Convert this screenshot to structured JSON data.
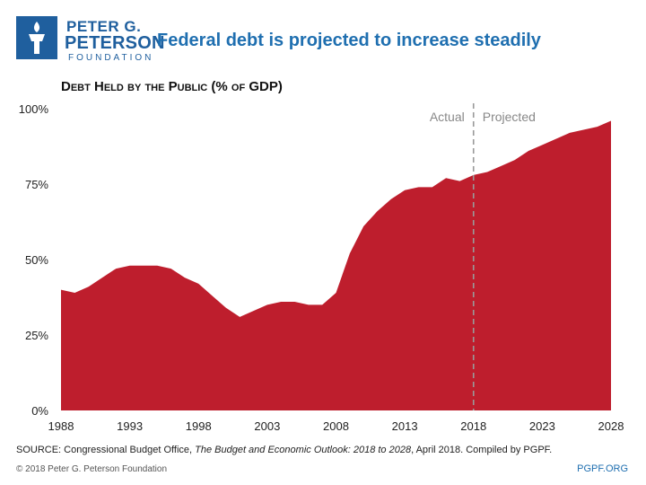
{
  "brand": {
    "line1": "PETER G.",
    "line2": "PETERSON",
    "line3": "FOUNDATION",
    "color": "#1f5f9e"
  },
  "headline": "Federal debt is projected to increase steadily",
  "footer": {
    "source_prefix": "SOURCE: Congressional Budget Office, ",
    "source_title": "The Budget and Economic Outlook: 2018 to 2028",
    "source_suffix": ", April 2018. Compiled by PGPF.",
    "copyright": "© 2018 Peter G. Peterson Foundation",
    "site": "PGPF.ORG"
  },
  "chart_data": {
    "type": "area",
    "title": "Debt Held by the Public (% of GDP)",
    "xlabel": "",
    "ylabel": "",
    "x_ticks": [
      "1988",
      "1993",
      "1998",
      "2003",
      "2008",
      "2013",
      "2018",
      "2023",
      "2028"
    ],
    "y_ticks": [
      "0%",
      "25%",
      "50%",
      "75%",
      "100%"
    ],
    "ylim": [
      0,
      100
    ],
    "xlim": [
      1988,
      2028
    ],
    "divider_year": 2018,
    "annotations": {
      "left": "Actual",
      "right": "Projected"
    },
    "fill_color": "#be1e2d",
    "series": [
      {
        "name": "Debt Held by the Public (% of GDP)",
        "x": [
          1988,
          1989,
          1990,
          1991,
          1992,
          1993,
          1994,
          1995,
          1996,
          1997,
          1998,
          1999,
          2000,
          2001,
          2002,
          2003,
          2004,
          2005,
          2006,
          2007,
          2008,
          2009,
          2010,
          2011,
          2012,
          2013,
          2014,
          2015,
          2016,
          2017,
          2018,
          2019,
          2020,
          2021,
          2022,
          2023,
          2024,
          2025,
          2026,
          2027,
          2028
        ],
        "values": [
          40,
          39,
          41,
          44,
          47,
          48,
          48,
          48,
          47,
          44,
          42,
          38,
          34,
          31,
          33,
          35,
          36,
          36,
          35,
          35,
          39,
          52,
          61,
          66,
          70,
          73,
          74,
          74,
          77,
          76,
          78,
          79,
          81,
          83,
          86,
          88,
          90,
          92,
          93,
          94,
          96
        ]
      }
    ]
  }
}
